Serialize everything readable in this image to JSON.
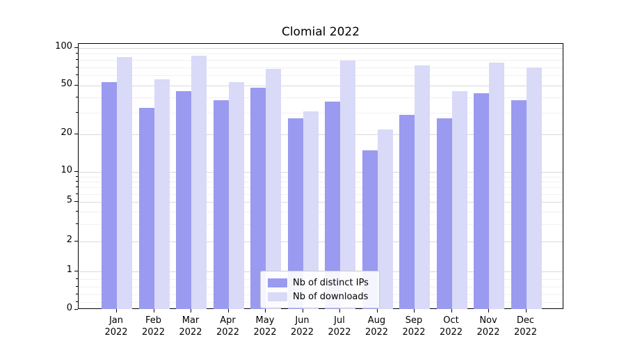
{
  "chart_data": {
    "type": "bar",
    "title": "Clomial 2022",
    "scale": "symlog",
    "grid": true,
    "legend_position": "lower center",
    "year": "2022",
    "categories": [
      "Jan",
      "Feb",
      "Mar",
      "Apr",
      "May",
      "Jun",
      "Jul",
      "Aug",
      "Sep",
      "Oct",
      "Nov",
      "Dec"
    ],
    "yticks": [
      0,
      1,
      2,
      5,
      10,
      20,
      50,
      100
    ],
    "ylim": [
      0,
      100
    ],
    "series": [
      {
        "name": "Nb of distinct IPs",
        "color": "#9a9af0",
        "values": [
          53,
          33,
          45,
          38,
          48,
          27,
          37,
          15,
          29,
          27,
          43,
          38
        ]
      },
      {
        "name": "Nb of downloads",
        "color": "#d9d9f8",
        "values": [
          85,
          56,
          87,
          53,
          68,
          31,
          79,
          22,
          72,
          45,
          76,
          70
        ]
      }
    ]
  }
}
